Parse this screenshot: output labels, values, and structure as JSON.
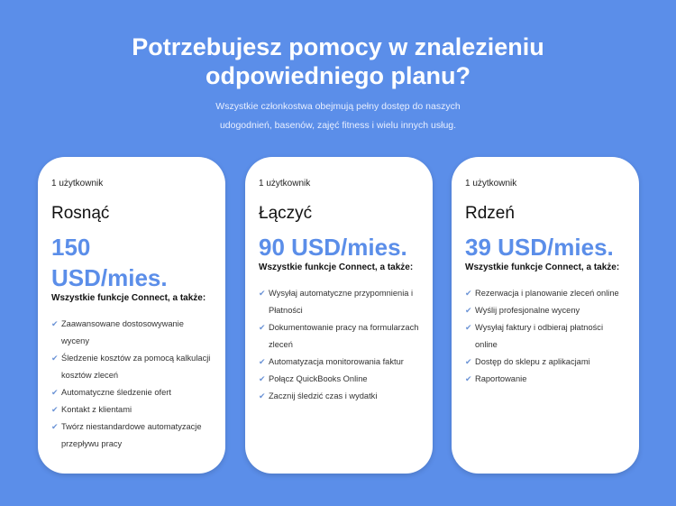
{
  "header": {
    "title_line1": "Potrzebujesz pomocy w znalezieniu",
    "title_line2": "odpowiedniego planu?",
    "subtitle_line1": "Wszystkie członkostwa obejmują pełny dostęp do naszych",
    "subtitle_line2": "udogodnień, basenów, zajęć fitness i wielu innych usług."
  },
  "plans": [
    {
      "users": "1 użytkownik",
      "name": "Rosnąć",
      "price": "150 USD/mies.",
      "features_heading": "Wszystkie funkcje Connect, a także:",
      "features": [
        "Zaawansowane dostosowywanie wyceny",
        "Śledzenie kosztów za pomocą kalkulacji kosztów zleceń",
        "Automatyczne śledzenie ofert",
        "Kontakt z klientami",
        "Twórz niestandardowe automatyzacje przepływu pracy"
      ]
    },
    {
      "users": "1 użytkownik",
      "name": "Łączyć",
      "price": "90 USD/mies.",
      "features_heading": "Wszystkie funkcje Connect, a także:",
      "features": [
        "Wysyłaj automatyczne przypomnienia i Płatności",
        "Dokumentowanie pracy na formularzach zleceń",
        "Automatyzacja monitorowania faktur",
        "Połącz QuickBooks Online",
        "Zacznij śledzić czas i wydatki"
      ]
    },
    {
      "users": "1 użytkownik",
      "name": "Rdzeń",
      "price": "39 USD/mies.",
      "features_heading": "Wszystkie funkcje Connect, a także:",
      "features": [
        "Rezerwacja i planowanie zleceń online",
        "Wyślij profesjonalne wyceny",
        "Wysyłaj faktury i odbieraj płatności online",
        "Dostęp do sklepu z aplikacjami",
        "Raportowanie"
      ]
    }
  ],
  "colors": {
    "background": "#5b8ee9",
    "accent": "#5b8ee9"
  }
}
